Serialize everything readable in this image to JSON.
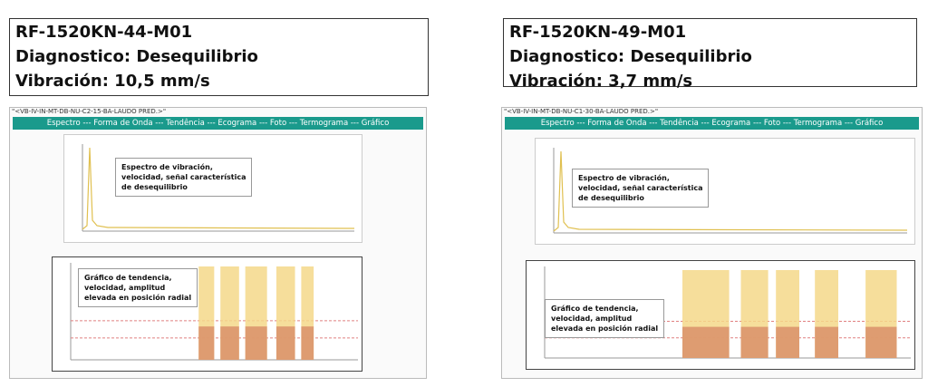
{
  "panels": [
    {
      "header": {
        "line1": "RF-1520KN-44-M01",
        "line2": "Diagnostico: Desequilibrio",
        "line3": "Vibración: 10,5 mm/s"
      },
      "screen": {
        "path": "\"<VB-IV-IN-MT-DB-NU-C2-15-BA-LAUDO PRED.>\"",
        "nav": "Espectro --- Forma de Onda --- Tendência --- Ecograma --- Foto --- Termograma --- Gráfico",
        "spectrum_note": [
          "Espectro de vibración,",
          "velocidad, señal característica",
          "de desequilibrio"
        ],
        "trend_note": [
          "Gráfico de tendencia,",
          "velocidad, amplitud",
          "elevada en posición radial"
        ]
      }
    },
    {
      "header": {
        "line1": "RF-1520KN-49-M01",
        "line2": "Diagnostico: Desequilibrio",
        "line3": "Vibración: 3,7 mm/s"
      },
      "screen": {
        "path": "\"<VB-IV-IN-MT-DB-NU-C1-30-BA-LAUDO PRED.>\"",
        "nav": "Espectro --- Forma de Onda --- Tendência --- Ecograma --- Foto --- Termograma --- Gráfico",
        "spectrum_note": [
          "Espectro de vibración,",
          "velocidad, señal característica",
          "de desequilibrio"
        ],
        "trend_note": [
          "Gráfico de tendencia,",
          "velocidad, amplitud",
          "elevada en posición radial"
        ]
      }
    }
  ]
}
